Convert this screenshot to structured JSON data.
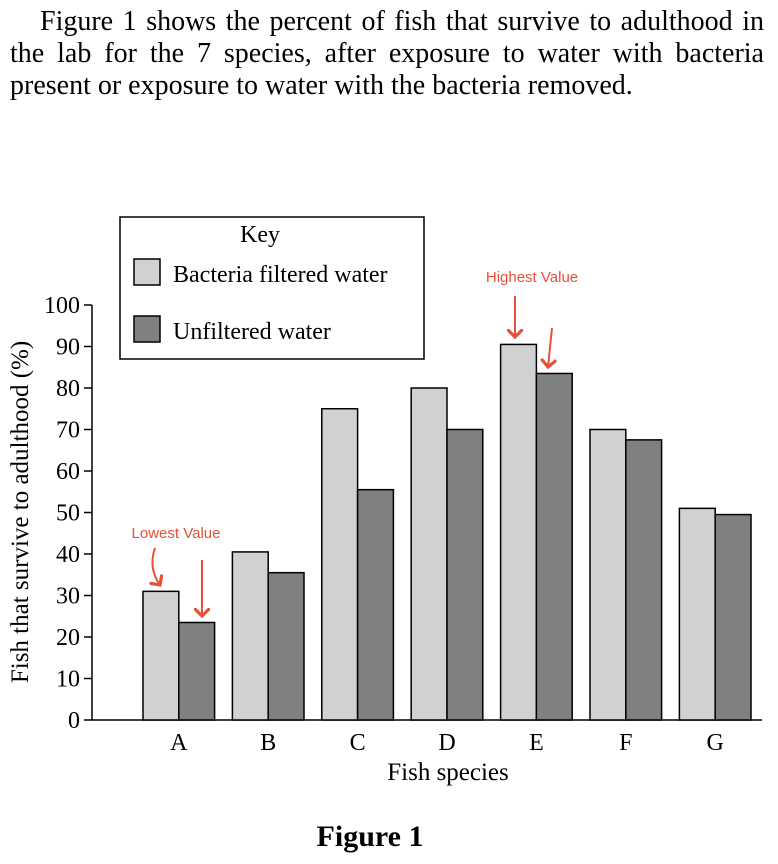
{
  "intro_text": "Figure 1 shows the percent of fish that survive to adulthood in the lab for the 7 species, after exposure to water with bacteria present or exposure to water with the bacteria removed.",
  "figure_caption": "Figure 1",
  "chart_data": {
    "type": "bar",
    "categories": [
      "A",
      "B",
      "C",
      "D",
      "E",
      "F",
      "G"
    ],
    "series": [
      {
        "name": "Bacteria filtered water",
        "color": "#d0d1d3",
        "values": [
          31,
          40.5,
          75,
          80,
          90.5,
          70,
          51
        ]
      },
      {
        "name": "Unfiltered water",
        "color": "#808082",
        "values": [
          23.5,
          35.5,
          55.5,
          70,
          83.5,
          67.5,
          49.5
        ]
      }
    ],
    "xlabel": "Fish species",
    "ylabel": "Fish that survive to adulthood (%)",
    "ylim": [
      0,
      100
    ],
    "yticks": [
      0,
      10,
      20,
      30,
      40,
      50,
      60,
      70,
      80,
      90,
      100
    ],
    "legend": {
      "title": "Key",
      "position": "top-left"
    },
    "annotations": [
      {
        "text": "Lowest Value",
        "color": "#e8503a",
        "category": "A"
      },
      {
        "text": "Highest Value",
        "color": "#e8503a",
        "category": "E"
      }
    ]
  }
}
